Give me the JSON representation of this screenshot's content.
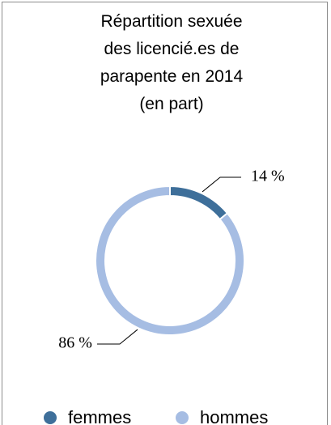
{
  "chart_data": {
    "type": "donut",
    "title": "Répartition sexuée des licencié.es de parapente en 2014 (en part)",
    "categories": [
      "femmes",
      "hommes"
    ],
    "values": [
      14,
      86
    ],
    "value_labels": [
      "14 %",
      "86 %"
    ],
    "colors": [
      "#3e6f9a",
      "#a6bde3"
    ],
    "legend": "bottom"
  }
}
